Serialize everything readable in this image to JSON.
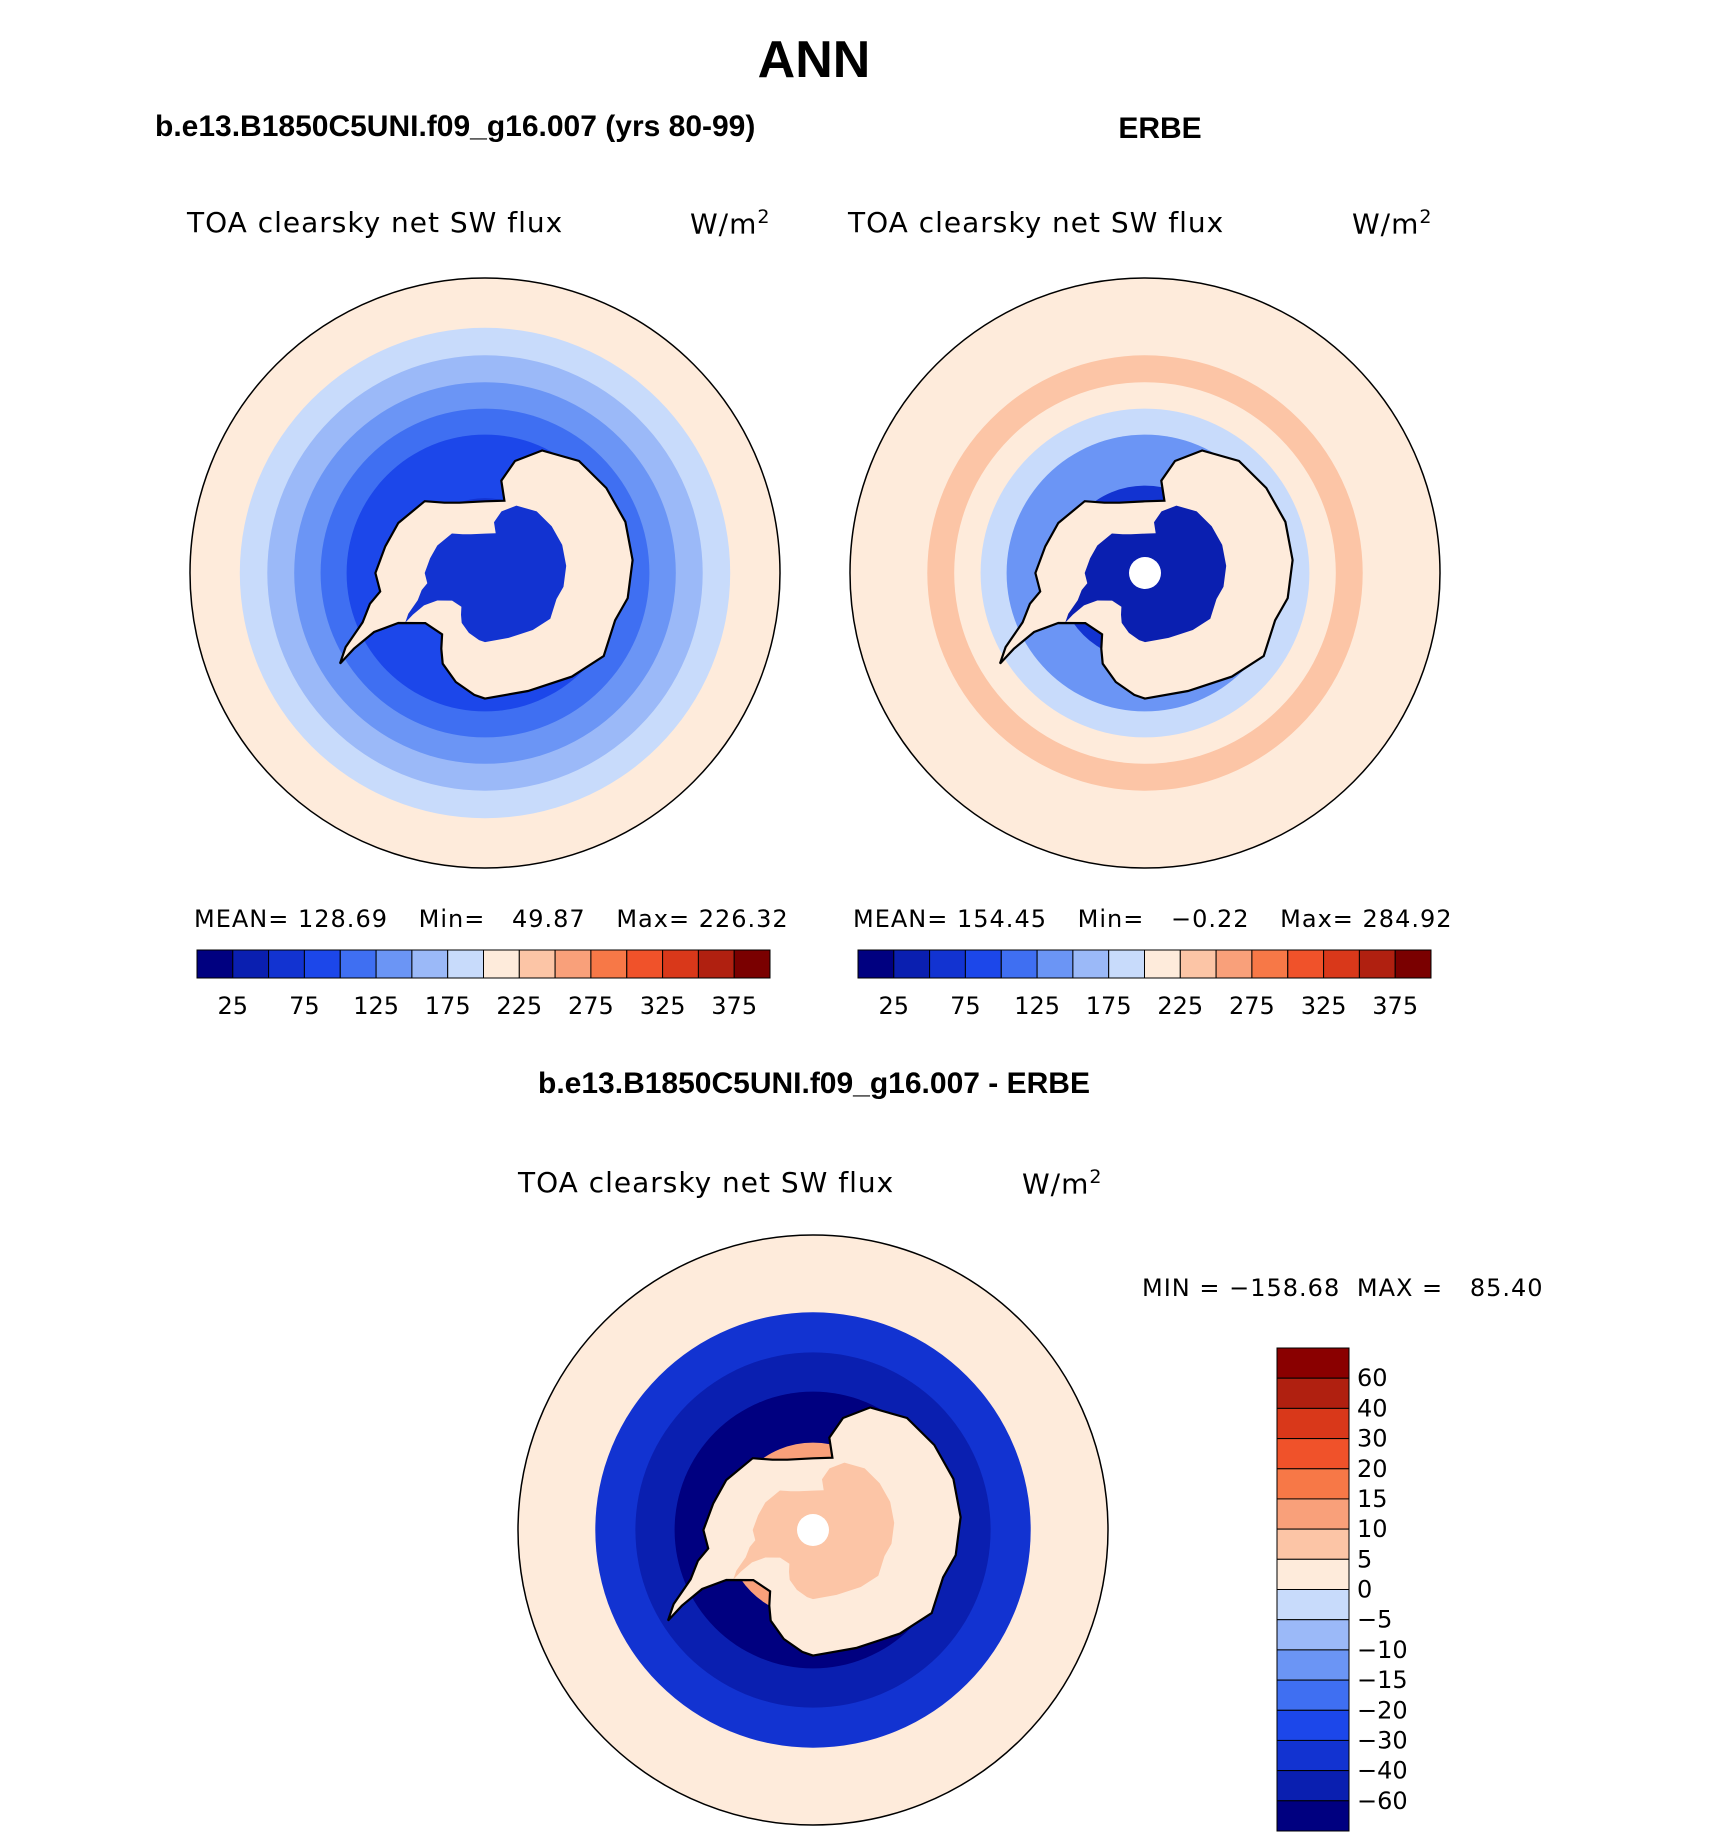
{
  "figure_title": "ANN",
  "colors": {
    "abs_scale": [
      "#000080",
      "#0a1fb0",
      "#1233d1",
      "#1c47ea",
      "#3f6ff2",
      "#6b95f5",
      "#9bb9f8",
      "#c8dbfb",
      "#feebdb",
      "#fcc5a6",
      "#f9a07a",
      "#f77847",
      "#f0522a",
      "#d9381a",
      "#b02010",
      "#7a0000"
    ],
    "diff_scale": [
      "#000080",
      "#0a1fb0",
      "#1233d1",
      "#1c47ea",
      "#3f6ff2",
      "#6b95f5",
      "#9bb9f8",
      "#c8dbfb",
      "#feebdb",
      "#fcc5a6",
      "#f9a07a",
      "#f77847",
      "#f0522a",
      "#d9381a",
      "#b02010",
      "#8a0000"
    ]
  },
  "panels": {
    "model": {
      "heading": "b.e13.B1850C5UNI.f09_g16.007 (yrs 80-99)",
      "variable": "TOA clearsky net SW flux",
      "units": "W/m",
      "units_sup": "2",
      "stats": {
        "mean_label": "MEAN=",
        "mean": "128.69",
        "min_label": "Min=",
        "min": "49.87",
        "max_label": "Max=",
        "max": "226.32"
      }
    },
    "obs": {
      "heading": "ERBE",
      "variable": "TOA clearsky net SW flux",
      "units": "W/m",
      "units_sup": "2",
      "stats": {
        "mean_label": "MEAN=",
        "mean": "154.45",
        "min_label": "Min=",
        "min": "−0.22",
        "max_label": "Max=",
        "max": "284.92"
      }
    },
    "diff": {
      "heading": "b.e13.B1850C5UNI.f09_g16.007 - ERBE",
      "variable": "TOA clearsky net SW flux",
      "units": "W/m",
      "units_sup": "2",
      "stats": {
        "min_label": "MIN =",
        "min": "−158.68",
        "max_label": "MAX =",
        "max": "85.40"
      }
    }
  },
  "chart_data": [
    {
      "type": "heatmap",
      "projection": "south polar stereographic",
      "title": "TOA clearsky net SW flux",
      "units": "W/m2",
      "source": "b.e13.B1850C5UNI.f09_g16.007 (yrs 80-99)",
      "mean": 128.69,
      "min": 49.87,
      "max": 226.32,
      "colorbar_levels": [
        25,
        50,
        75,
        100,
        125,
        150,
        175,
        200,
        225,
        250,
        275,
        300,
        325,
        350,
        375
      ],
      "colorbar_tick_labels": [
        "25",
        "75",
        "125",
        "175",
        "225",
        "275",
        "325",
        "375"
      ],
      "rings": [
        {
          "latitude": -90,
          "value": 62.5
        },
        {
          "latitude": -78,
          "value": 62.5
        },
        {
          "latitude": -68,
          "value": 87.5
        },
        {
          "latitude": -64,
          "value": 112.5
        },
        {
          "latitude": -60,
          "value": 137.5
        },
        {
          "latitude": -56,
          "value": 162.5
        },
        {
          "latitude": -52,
          "value": 187.5
        },
        {
          "latitude": -48,
          "value": 212.5
        }
      ]
    },
    {
      "type": "heatmap",
      "projection": "south polar stereographic",
      "title": "TOA clearsky net SW flux",
      "units": "W/m2",
      "source": "ERBE",
      "mean": 154.45,
      "min": -0.22,
      "max": 284.92,
      "colorbar_levels": [
        25,
        50,
        75,
        100,
        125,
        150,
        175,
        200,
        225,
        250,
        275,
        300,
        325,
        350,
        375
      ],
      "colorbar_tick_labels": [
        "25",
        "75",
        "125",
        "175",
        "225",
        "275",
        "325",
        "375"
      ],
      "rings": [
        {
          "latitude": -90,
          "value": 37.5
        },
        {
          "latitude": -76,
          "value": 62.5
        },
        {
          "latitude": -68,
          "value": 137.5
        },
        {
          "latitude": -64,
          "value": 187.5
        },
        {
          "latitude": -60,
          "value": 212.5
        },
        {
          "latitude": -56,
          "value": 237.5
        },
        {
          "latitude": -50,
          "value": 212.5
        }
      ]
    },
    {
      "type": "heatmap",
      "projection": "south polar stereographic",
      "title": "TOA clearsky net SW flux",
      "units": "W/m2",
      "source": "b.e13.B1850C5UNI.f09_g16.007 - ERBE",
      "min": -158.68,
      "max": 85.4,
      "colorbar_levels": [
        -60,
        -40,
        -30,
        -20,
        -15,
        -10,
        -5,
        0,
        5,
        10,
        15,
        20,
        30,
        40,
        60
      ],
      "colorbar_tick_labels": [
        "60",
        "40",
        "30",
        "20",
        "15",
        "10",
        "5",
        "0",
        "−5",
        "−10",
        "−15",
        "−20",
        "−30",
        "−40",
        "−60"
      ],
      "rings": [
        {
          "latitude": -90,
          "value": 7.5
        },
        {
          "latitude": -76,
          "value": 12.5
        },
        {
          "latitude": -68,
          "value": -70
        },
        {
          "latitude": -62,
          "value": -50
        },
        {
          "latitude": -56,
          "value": -35
        },
        {
          "latitude": -50,
          "value": 2.5
        }
      ]
    }
  ]
}
